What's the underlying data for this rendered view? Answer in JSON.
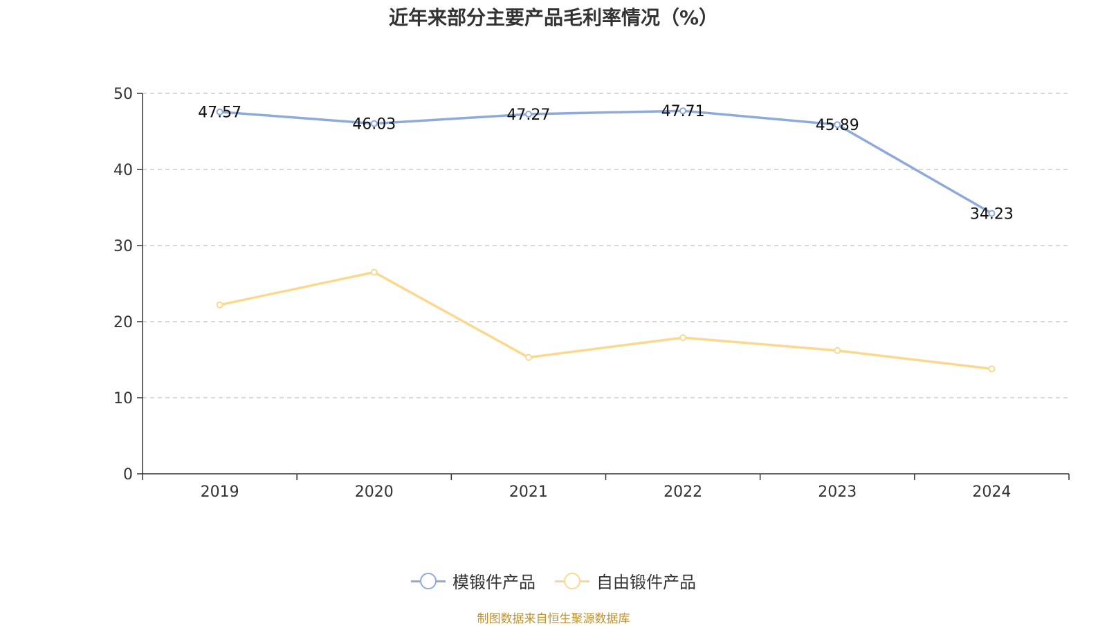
{
  "chart_data": {
    "type": "line",
    "title": "近年来部分主要产品毛利率情况（%）",
    "categories": [
      "2019",
      "2020",
      "2021",
      "2022",
      "2023",
      "2024"
    ],
    "ylim": [
      0,
      50
    ],
    "yticks": [
      0,
      10,
      20,
      30,
      40,
      50
    ],
    "grid": true,
    "legend_position": "bottom",
    "series": [
      {
        "name": "模锻件产品",
        "color": "#8eaadb",
        "values": [
          47.57,
          46.03,
          47.27,
          47.71,
          45.89,
          34.23
        ],
        "labels": [
          "47.57",
          "46.03",
          "47.27",
          "47.71",
          "45.89",
          "34.23"
        ]
      },
      {
        "name": "自由锻件产品",
        "color": "#fcd88f",
        "values": [
          22.2,
          26.5,
          15.3,
          17.9,
          16.2,
          13.8
        ]
      }
    ]
  },
  "footer": {
    "source": "制图数据来自恒生聚源数据库",
    "source_color": "#c0922f"
  }
}
